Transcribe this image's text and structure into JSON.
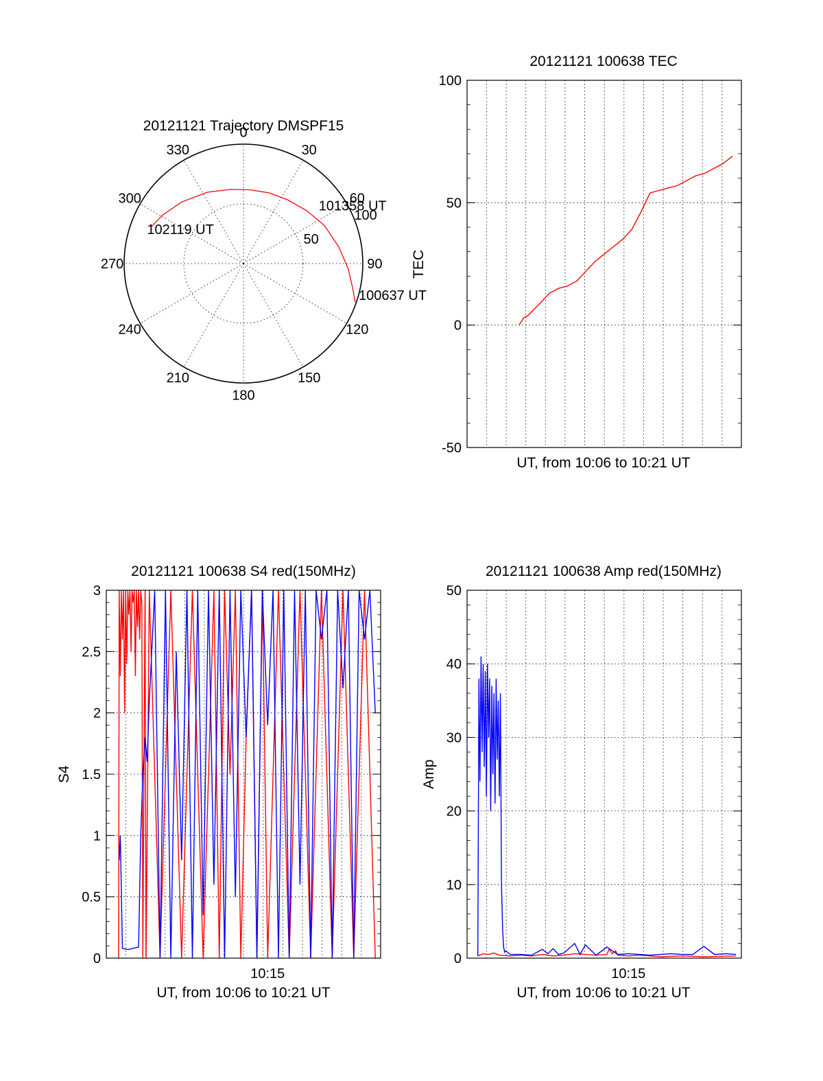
{
  "colors": {
    "red": "#ff0000",
    "blue": "#0000ff",
    "axis": "#000000"
  },
  "chart_data": [
    {
      "id": "trajectory",
      "type": "polar",
      "title": "20121121 Trajectory DMSPF15",
      "angle_labels": [
        "0",
        "30",
        "60",
        "90",
        "120",
        "150",
        "180",
        "210",
        "240",
        "270",
        "300",
        "330"
      ],
      "radial_labels": [
        "50",
        "100"
      ],
      "radial_max": 100,
      "series": [
        {
          "color": "#ff0000",
          "azimuth": [
            292,
            301,
            315,
            333,
            350,
            5,
            20,
            35,
            50,
            65,
            80,
            93,
            103,
            109
          ],
          "distance": [
            83,
            79,
            73,
            67,
            63,
            62,
            63,
            65,
            69,
            75,
            81,
            88,
            94,
            99
          ]
        }
      ],
      "annotations": [
        {
          "text": "102119 UT",
          "azimuth": 290,
          "distance": 86
        },
        {
          "text": "101358 UT",
          "azimuth": 52,
          "distance": 80
        },
        {
          "text": "100637 UT",
          "azimuth": 105,
          "distance": 100
        }
      ]
    },
    {
      "id": "tec",
      "type": "line",
      "title": "20121121 100638 TEC",
      "xlabel": "UT, from 10:06 to 10:21 UT",
      "ylabel": "TEC",
      "xlim": [
        10.05,
        10.35
      ],
      "ylim": [
        -50,
        100
      ],
      "yticks": [
        -50,
        0,
        50,
        100
      ],
      "grid": true,
      "series": [
        {
          "color": "#ff0000",
          "x": [
            10.1069,
            10.112,
            10.117,
            10.122,
            10.13,
            10.14,
            10.15,
            10.16,
            10.17,
            10.18,
            10.19,
            10.2,
            10.21,
            10.22,
            10.23,
            10.24,
            10.25,
            10.26,
            10.27,
            10.28,
            10.29,
            10.3,
            10.31,
            10.32,
            10.33,
            10.3403
          ],
          "y": [
            0,
            3,
            4,
            6,
            9,
            13,
            15,
            16,
            18,
            22,
            26,
            29,
            32,
            35,
            39,
            46,
            54,
            55,
            56,
            57,
            59,
            61,
            62,
            64,
            66,
            69
          ]
        }
      ]
    },
    {
      "id": "s4",
      "type": "line",
      "title": "20121121 100638 S4 red(150MHz)",
      "xlabel": "UT, from 10:06 to 10:21 UT",
      "ylabel": "S4",
      "xlim": [
        10.1,
        10.355
      ],
      "ylim": [
        0,
        3
      ],
      "yticks": [
        0,
        0.5,
        1,
        1.5,
        2,
        2.5,
        3
      ],
      "xtick_labels": [
        {
          "x": 10.25,
          "label": "10:15"
        }
      ],
      "grid": true,
      "series": [
        {
          "color": "#ff0000",
          "x": [
            10.1115,
            10.112,
            10.113,
            10.114,
            10.115,
            10.116,
            10.117,
            10.118,
            10.119,
            10.12,
            10.121,
            10.122,
            10.123,
            10.124,
            10.125,
            10.126,
            10.127,
            10.128,
            10.129,
            10.13,
            10.131,
            10.132,
            10.133,
            10.134,
            10.136,
            10.137,
            10.14,
            10.15,
            10.16,
            10.17,
            10.18,
            10.19,
            10.2,
            10.205,
            10.21,
            10.215,
            10.22,
            10.225,
            10.23,
            10.235,
            10.24,
            10.245,
            10.25,
            10.26,
            10.27,
            10.28,
            10.29,
            10.3,
            10.31,
            10.32,
            10.33,
            10.34,
            10.35
          ],
          "y": [
            0,
            3,
            2.3,
            3,
            2.6,
            3,
            2,
            3,
            2.4,
            3,
            2.8,
            3,
            2.5,
            3,
            2.9,
            3,
            2.3,
            3,
            2.7,
            3,
            2.6,
            3,
            2.9,
            0,
            3,
            0,
            3,
            0,
            3,
            0,
            3,
            0,
            3,
            0,
            3,
            1.5,
            3,
            0,
            1.8,
            3,
            0,
            3,
            0,
            3,
            0,
            3,
            0,
            3,
            0,
            3,
            0,
            3,
            0
          ]
        },
        {
          "color": "#0000ff",
          "x": [
            10.112,
            10.113,
            10.115,
            10.12,
            10.125,
            10.13,
            10.132,
            10.134,
            10.136,
            10.138,
            10.14,
            10.145,
            10.15,
            10.155,
            10.16,
            10.165,
            10.17,
            10.175,
            10.18,
            10.185,
            10.19,
            10.195,
            10.2,
            10.205,
            10.21,
            10.215,
            10.22,
            10.225,
            10.23,
            10.235,
            10.24,
            10.245,
            10.25,
            10.255,
            10.26,
            10.265,
            10.27,
            10.275,
            10.28,
            10.285,
            10.29,
            10.295,
            10.3,
            10.305,
            10.31,
            10.315,
            10.32,
            10.325,
            10.33,
            10.335,
            10.34,
            10.345,
            10.35
          ],
          "y": [
            0.8,
            1.0,
            0.08,
            0.07,
            0.08,
            0.09,
            1.0,
            1.5,
            1.8,
            1.6,
            2.1,
            3,
            0,
            3,
            0,
            2.5,
            0.8,
            3,
            0,
            3,
            0.35,
            3,
            0.6,
            3,
            0,
            3,
            0.5,
            3,
            1.8,
            3,
            0,
            3,
            1.9,
            3,
            0,
            3,
            0,
            3,
            0.6,
            3,
            0,
            3,
            2.6,
            3,
            0,
            3,
            2.2,
            3,
            0,
            3,
            2.6,
            3,
            2.0
          ]
        }
      ]
    },
    {
      "id": "amp",
      "type": "line",
      "title": "20121121 100638 Amp red(150MHz)",
      "xlabel": "UT, from 10:06 to 10:21 UT",
      "ylabel": "Amp",
      "xlim": [
        10.1,
        10.355
      ],
      "ylim": [
        0,
        50
      ],
      "yticks": [
        0,
        10,
        20,
        30,
        40,
        50
      ],
      "xtick_labels": [
        {
          "x": 10.25,
          "label": "10:15"
        }
      ],
      "grid": true,
      "series": [
        {
          "color": "#ff0000",
          "x": [
            10.11,
            10.115,
            10.12,
            10.125,
            10.13,
            10.14,
            10.15,
            10.16,
            10.17,
            10.18,
            10.19,
            10.2,
            10.21,
            10.22,
            10.23,
            10.232,
            10.235,
            10.238,
            10.24,
            10.25,
            10.26,
            10.27,
            10.28,
            10.3,
            10.32,
            10.35
          ],
          "y": [
            0.3,
            0.6,
            0.5,
            0.7,
            0.4,
            0.3,
            0.4,
            0.3,
            0.5,
            0.3,
            0.4,
            0.6,
            0.5,
            0.4,
            0.5,
            1.2,
            0.6,
            1.0,
            0.4,
            0.3,
            0.4,
            0.3,
            0.2,
            0.3,
            0.2,
            0.3
          ]
        },
        {
          "color": "#0000ff",
          "x": [
            10.11,
            10.111,
            10.112,
            10.113,
            10.114,
            10.115,
            10.116,
            10.117,
            10.118,
            10.119,
            10.12,
            10.121,
            10.122,
            10.123,
            10.124,
            10.125,
            10.126,
            10.127,
            10.128,
            10.129,
            10.13,
            10.131,
            10.132,
            10.133,
            10.134,
            10.135,
            10.136,
            10.14,
            10.15,
            10.16,
            10.17,
            10.175,
            10.18,
            10.185,
            10.19,
            10.2,
            10.205,
            10.21,
            10.22,
            10.23,
            10.24,
            10.25,
            10.26,
            10.27,
            10.28,
            10.29,
            10.3,
            10.31,
            10.32,
            10.33,
            10.34,
            10.35
          ],
          "y": [
            0.3,
            38,
            24,
            41,
            28,
            40,
            26,
            39,
            22,
            40,
            30,
            38,
            20,
            37,
            25,
            36,
            21,
            38,
            27,
            35,
            22,
            36,
            10,
            4,
            1.5,
            0.8,
            1.0,
            0.5,
            0.5,
            0.4,
            1.2,
            0.6,
            1.3,
            0.5,
            0.7,
            2.0,
            0.5,
            1.8,
            0.4,
            1.5,
            0.5,
            0.6,
            0.5,
            0.4,
            0.5,
            0.6,
            0.5,
            0.5,
            1.6,
            0.5,
            0.6,
            0.5
          ]
        }
      ]
    }
  ]
}
